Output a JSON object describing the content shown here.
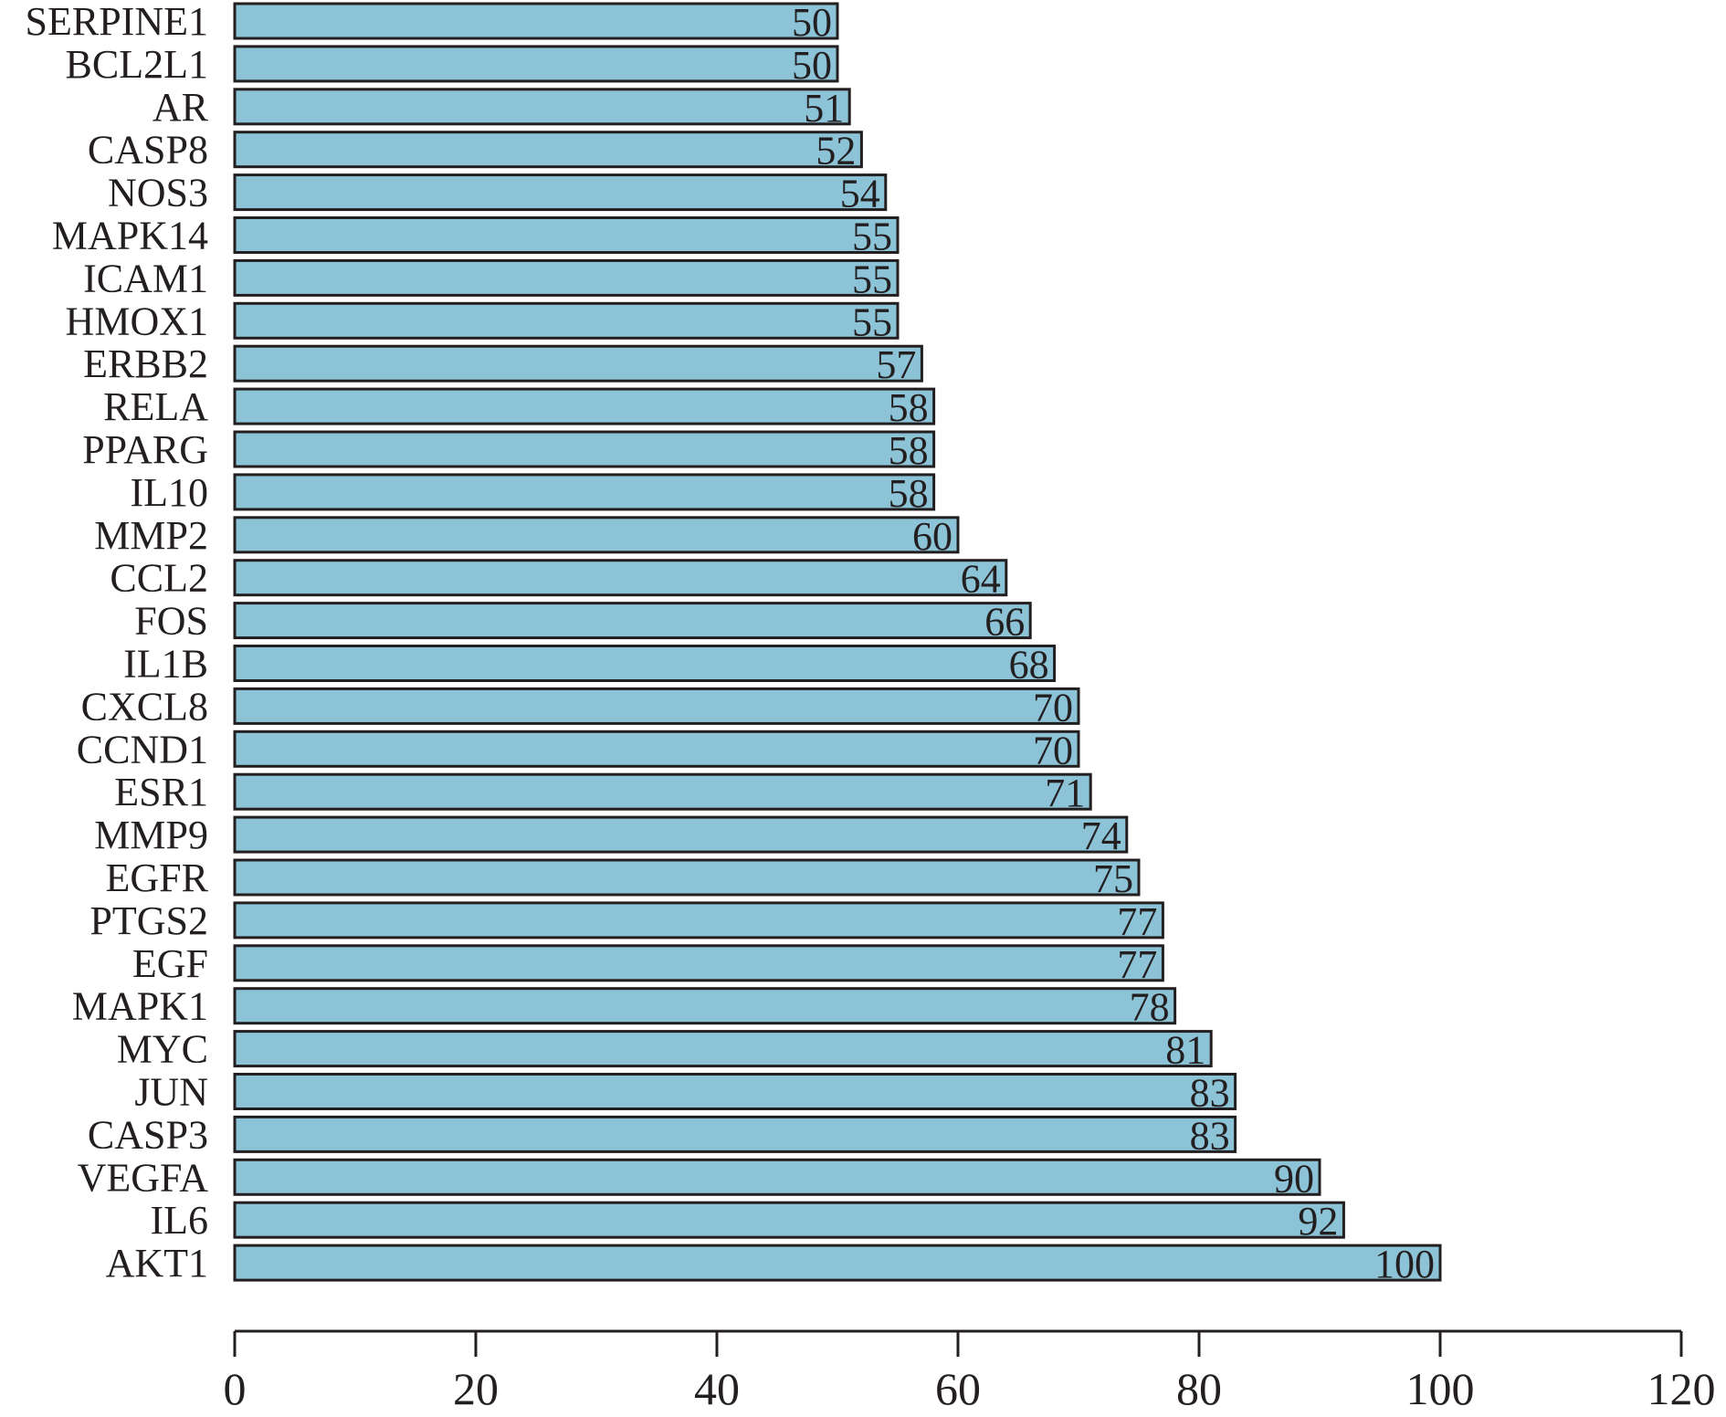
{
  "chart_data": {
    "type": "bar",
    "orientation": "horizontal",
    "title": "",
    "xlabel": "",
    "ylabel": "",
    "categories": [
      "SERPINE1",
      "BCL2L1",
      "AR",
      "CASP8",
      "NOS3",
      "MAPK14",
      "ICAM1",
      "HMOX1",
      "ERBB2",
      "RELA",
      "PPARG",
      "IL10",
      "MMP2",
      "CCL2",
      "FOS",
      "IL1B",
      "CXCL8",
      "CCND1",
      "ESR1",
      "MMP9",
      "EGFR",
      "PTGS2",
      "EGF",
      "MAPK1",
      "MYC",
      "JUN",
      "CASP3",
      "VEGFA",
      "IL6",
      "AKT1"
    ],
    "values": [
      50,
      50,
      51,
      52,
      54,
      55,
      55,
      55,
      57,
      58,
      58,
      58,
      60,
      64,
      66,
      68,
      70,
      70,
      71,
      74,
      75,
      77,
      77,
      78,
      81,
      83,
      83,
      90,
      92,
      100
    ],
    "xlim": [
      0,
      120
    ],
    "xticks": [
      0,
      20,
      40,
      60,
      80,
      100,
      120
    ],
    "grid": false,
    "legend": "none",
    "colors": {
      "bar_fill": "#8cc3d6",
      "bar_stroke": "#231f20",
      "text": "#231f20",
      "axis": "#231f20"
    }
  }
}
